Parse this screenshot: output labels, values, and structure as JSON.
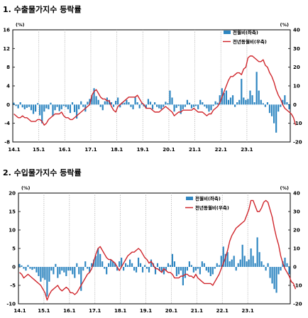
{
  "chart_data": [
    {
      "type": "bar",
      "title": "1. 수출물가지수 등락률",
      "left_unit": "(%)",
      "right_unit": "(%)",
      "left_ylim": [
        -8,
        16
      ],
      "left_ticks": [
        -8,
        -4,
        0,
        4,
        8,
        12,
        16
      ],
      "right_ylim": [
        -20,
        40
      ],
      "right_ticks": [
        -20,
        -10,
        0,
        10,
        20,
        30,
        40
      ],
      "x_ticks": [
        "14.1",
        "15.1",
        "16.1",
        "17.1",
        "18.1",
        "19.1",
        "20.1",
        "21.1",
        "22.1",
        "23.1"
      ],
      "series": [
        {
          "name": "전월비(좌축)",
          "axis": "left",
          "color": "#2e86c1",
          "values": [
            0.4,
            -0.3,
            -0.8,
            0.5,
            -0.6,
            -1.0,
            -0.7,
            -0.5,
            -1.2,
            -2.0,
            -1.5,
            0.3,
            -2.3,
            -4.0,
            -1.5,
            -0.8,
            -1.0,
            0.4,
            -2.5,
            -1.2,
            -0.5,
            -1.4,
            -1.0,
            -0.3,
            -0.5,
            -1.0,
            -1.8,
            0.5,
            -1.6,
            -3.0,
            -1.0,
            0.7,
            -0.5,
            -1.5,
            0.6,
            1.2,
            2.0,
            3.5,
            1.8,
            1.0,
            -0.5,
            -1.2,
            0.7,
            1.5,
            1.0,
            0.5,
            -0.5,
            0.8,
            1.5,
            -0.6,
            0.5,
            0.4,
            1.0,
            0.5,
            -0.5,
            -1.0,
            1.5,
            0.5,
            -0.8,
            0.3,
            -0.4,
            -0.8,
            1.2,
            0.6,
            -1.0,
            0.5,
            -0.5,
            -0.8,
            -1.0,
            -0.5,
            0.6,
            0.3,
            3.0,
            1.5,
            -1.5,
            -0.7,
            -0.3,
            -2.0,
            -1.0,
            -0.5,
            1.0,
            0.4,
            -0.8,
            -0.5,
            -0.3,
            -1.0,
            1.0,
            0.5,
            -0.4,
            -0.8,
            -1.5,
            -1.2,
            -0.3,
            0.7,
            0.4,
            2.0,
            3.5,
            2.5,
            3.0,
            1.0,
            1.5,
            2.0,
            -0.5,
            0.5,
            1.0,
            5.5,
            1.5,
            1.0,
            1.2,
            3.0,
            2.0,
            0.5,
            7.0,
            3.0,
            1.0,
            0.3,
            -0.5,
            0.5,
            -1.8,
            -2.5,
            -4.0,
            -6.0,
            -1.5,
            -0.5,
            1.0,
            2.0,
            0.5,
            -1.0
          ]
        },
        {
          "name": "전년동월비(우축)",
          "axis": "right",
          "color": "#d0262c",
          "values": [
            -5,
            -6,
            -7,
            -7,
            -6,
            -7,
            -7,
            -8,
            -9,
            -9,
            -9,
            -8,
            -8,
            -9,
            -11,
            -10,
            -8,
            -7,
            -6,
            -5,
            -5,
            -5,
            -4,
            -6,
            -7,
            -7,
            -8,
            -8,
            -7,
            -6,
            -5,
            -4,
            -3,
            -2,
            -1,
            0,
            5,
            7,
            8,
            6,
            4,
            3,
            3,
            2,
            2,
            -1,
            -3,
            -4,
            -1,
            0,
            1,
            2,
            3,
            4,
            4,
            4,
            4,
            5,
            3,
            1,
            0,
            -2,
            -2,
            -2,
            -3,
            -4,
            -4,
            -4,
            -3,
            -2,
            -1,
            -2,
            -3,
            -4,
            -6,
            -5,
            -4,
            -4,
            -3,
            -3,
            -3,
            -3,
            -3,
            -2,
            -3,
            -4,
            -4,
            -4,
            -5,
            -6,
            -5,
            -5,
            -3,
            -2,
            -1,
            1,
            4,
            7,
            10,
            13,
            15,
            15,
            16,
            17,
            17,
            16,
            19,
            20,
            25,
            26,
            26,
            25,
            24,
            23,
            23,
            24,
            21,
            20,
            17,
            15,
            12,
            8,
            5,
            3,
            0,
            -2,
            -3,
            -4,
            -5,
            -7,
            -11
          ]
        }
      ]
    },
    {
      "type": "bar",
      "title": "2. 수입물가지수 등락률",
      "left_unit": "(%)",
      "right_unit": "(%)",
      "left_ylim": [
        -10,
        20
      ],
      "left_ticks": [
        -10,
        -5,
        0,
        5,
        10,
        15,
        20
      ],
      "right_ylim": [
        -20,
        40
      ],
      "right_ticks": [
        -20,
        -10,
        0,
        10,
        20,
        30,
        40
      ],
      "x_ticks": [
        "14.1",
        "15.1",
        "16.1",
        "17.1",
        "18.1",
        "19.1",
        "20.1",
        "21.1",
        "22.1",
        "23.1"
      ],
      "series": [
        {
          "name": "전월비(좌축)",
          "axis": "left",
          "color": "#2e86c1",
          "values": [
            0.8,
            0.4,
            -0.5,
            -1.0,
            0.5,
            -0.5,
            -0.8,
            -0.5,
            -1.5,
            -2.5,
            -4.0,
            -3.0,
            -3.5,
            -8.0,
            -4.0,
            -1.0,
            -2.0,
            0.8,
            -3.0,
            -2.0,
            -1.0,
            -1.5,
            -2.5,
            -1.0,
            -1.0,
            -2.0,
            -3.0,
            1.0,
            -2.0,
            -6.5,
            -1.0,
            1.5,
            -0.5,
            -1.5,
            1.0,
            2.0,
            3.0,
            5.0,
            3.5,
            1.5,
            -0.5,
            -2.0,
            1.0,
            2.0,
            1.5,
            1.0,
            -1.0,
            1.5,
            2.5,
            -1.0,
            1.0,
            0.5,
            2.0,
            1.0,
            -1.0,
            -1.5,
            2.5,
            1.0,
            -1.5,
            0.5,
            -0.5,
            -1.5,
            2.0,
            1.0,
            -2.0,
            1.0,
            -1.0,
            -1.5,
            -2.0,
            -1.0,
            1.0,
            0.5,
            3.5,
            1.5,
            -2.5,
            -2.0,
            -1.0,
            -5.0,
            -3.0,
            -1.0,
            1.5,
            0.5,
            -1.5,
            -1.0,
            -0.5,
            -2.0,
            1.5,
            1.0,
            -1.0,
            -1.5,
            -2.5,
            -2.0,
            -0.5,
            1.0,
            0.5,
            3.0,
            5.5,
            3.5,
            4.0,
            1.5,
            2.0,
            3.0,
            -1.0,
            1.0,
            2.0,
            6.0,
            3.0,
            1.5,
            2.0,
            5.0,
            3.0,
            1.0,
            8.0,
            4.0,
            1.5,
            0.5,
            -1.0,
            1.0,
            -3.0,
            -4.5,
            -6.0,
            -7.0,
            -2.0,
            -1.0,
            1.5,
            2.5,
            1.0,
            -2.0
          ]
        },
        {
          "name": "전년동월비(우축)",
          "axis": "right",
          "color": "#d0262c",
          "values": [
            -3,
            -4,
            -6,
            -5,
            -4,
            -5,
            -6,
            -7,
            -8,
            -9,
            -10,
            -12,
            -14,
            -18,
            -15,
            -13,
            -12,
            -11,
            -10,
            -12,
            -13,
            -12,
            -11,
            -12,
            -14,
            -14,
            -15,
            -14,
            -12,
            -10,
            -8,
            -6,
            -4,
            -3,
            -1,
            3,
            7,
            10,
            11,
            9,
            7,
            5,
            4,
            4,
            3,
            2,
            0,
            -2,
            0,
            2,
            4,
            6,
            7,
            8,
            8,
            9,
            10,
            9,
            7,
            5,
            4,
            2,
            3,
            1,
            -1,
            -1,
            -2,
            -3,
            -1,
            -2,
            -3,
            -3,
            -4,
            -6,
            -6,
            -6,
            -5,
            -5,
            -4,
            -4,
            -5,
            -5,
            -6,
            -4,
            -6,
            -7,
            -8,
            -9,
            -9,
            -9,
            -9,
            -10,
            -8,
            -6,
            -4,
            -1,
            2,
            5,
            9,
            14,
            17,
            19,
            21,
            22,
            23,
            24,
            25,
            28,
            31,
            36,
            36,
            33,
            30,
            30,
            32,
            35,
            36,
            35,
            31,
            27,
            21,
            16,
            12,
            6,
            2,
            -1,
            -3,
            -5,
            -8,
            -9,
            -12
          ]
        }
      ]
    }
  ]
}
